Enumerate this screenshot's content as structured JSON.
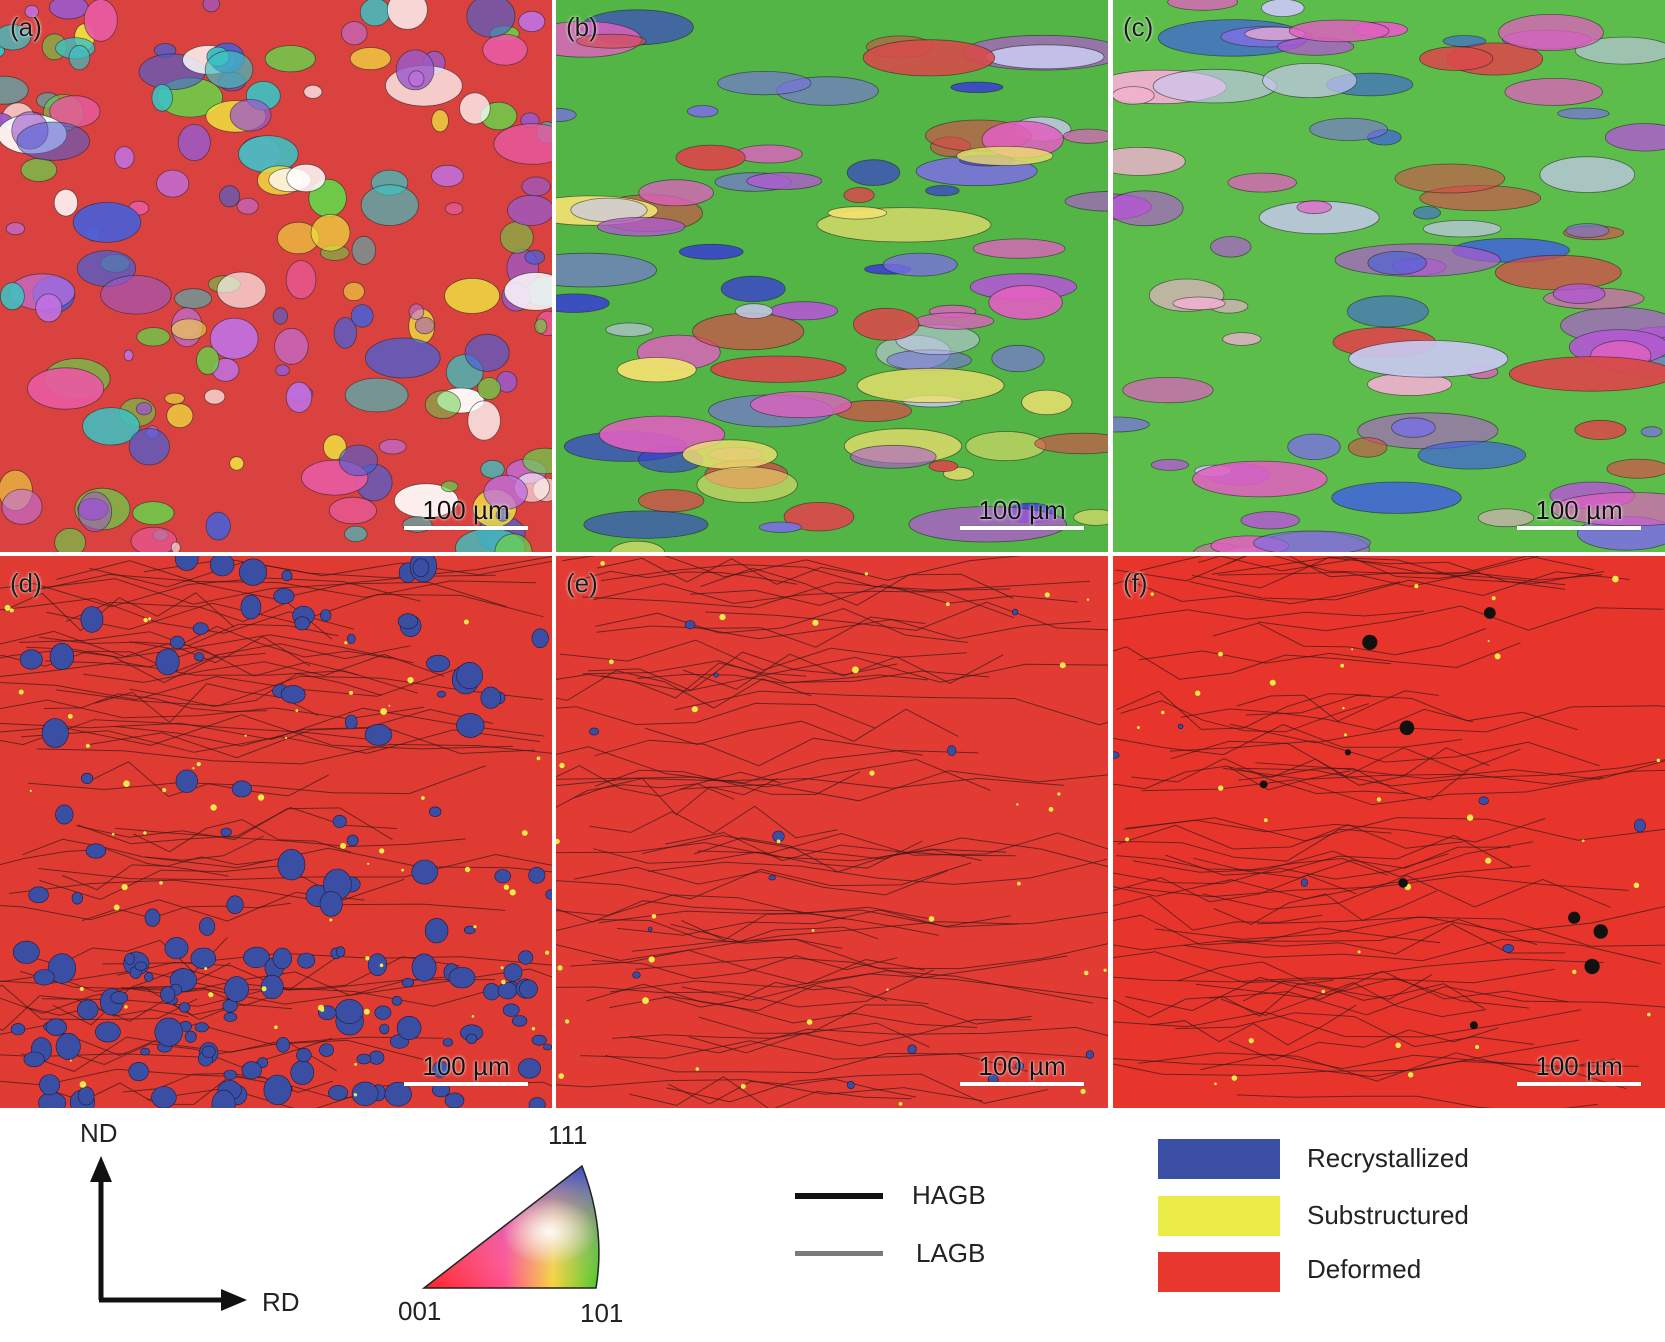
{
  "panels": [
    {
      "label": "(a)",
      "scale_bar": "100 µm",
      "kind": "ipf",
      "base": "#d9423e"
    },
    {
      "label": "(b)",
      "scale_bar": "100 µm",
      "kind": "ipf",
      "base": "#52b545"
    },
    {
      "label": "(c)",
      "scale_bar": "100 µm",
      "kind": "ipf",
      "base": "#5cbd4a"
    },
    {
      "label": "(d)",
      "scale_bar": "100 µm",
      "kind": "grain-state",
      "base": "#e03b32"
    },
    {
      "label": "(e)",
      "scale_bar": "100 µm",
      "kind": "grain-state",
      "base": "#e23b33"
    },
    {
      "label": "(f)",
      "scale_bar": "100 µm",
      "kind": "grain-state",
      "base": "#e8352c"
    }
  ],
  "legend": {
    "axes": {
      "vertical": "ND",
      "horizontal": "RD"
    },
    "ipf_triangle": {
      "corner_top": "111",
      "corner_left": "001",
      "corner_right": "101"
    },
    "boundaries": [
      {
        "label": "HAGB",
        "color": "#111111"
      },
      {
        "label": "LAGB",
        "color": "#7a7a7a"
      }
    ],
    "states": [
      {
        "label": "Recrystallized",
        "color": "#3a4fa3"
      },
      {
        "label": "Substructured",
        "color": "#ecec48"
      },
      {
        "label": "Deformed",
        "color": "#e8372d"
      }
    ]
  }
}
